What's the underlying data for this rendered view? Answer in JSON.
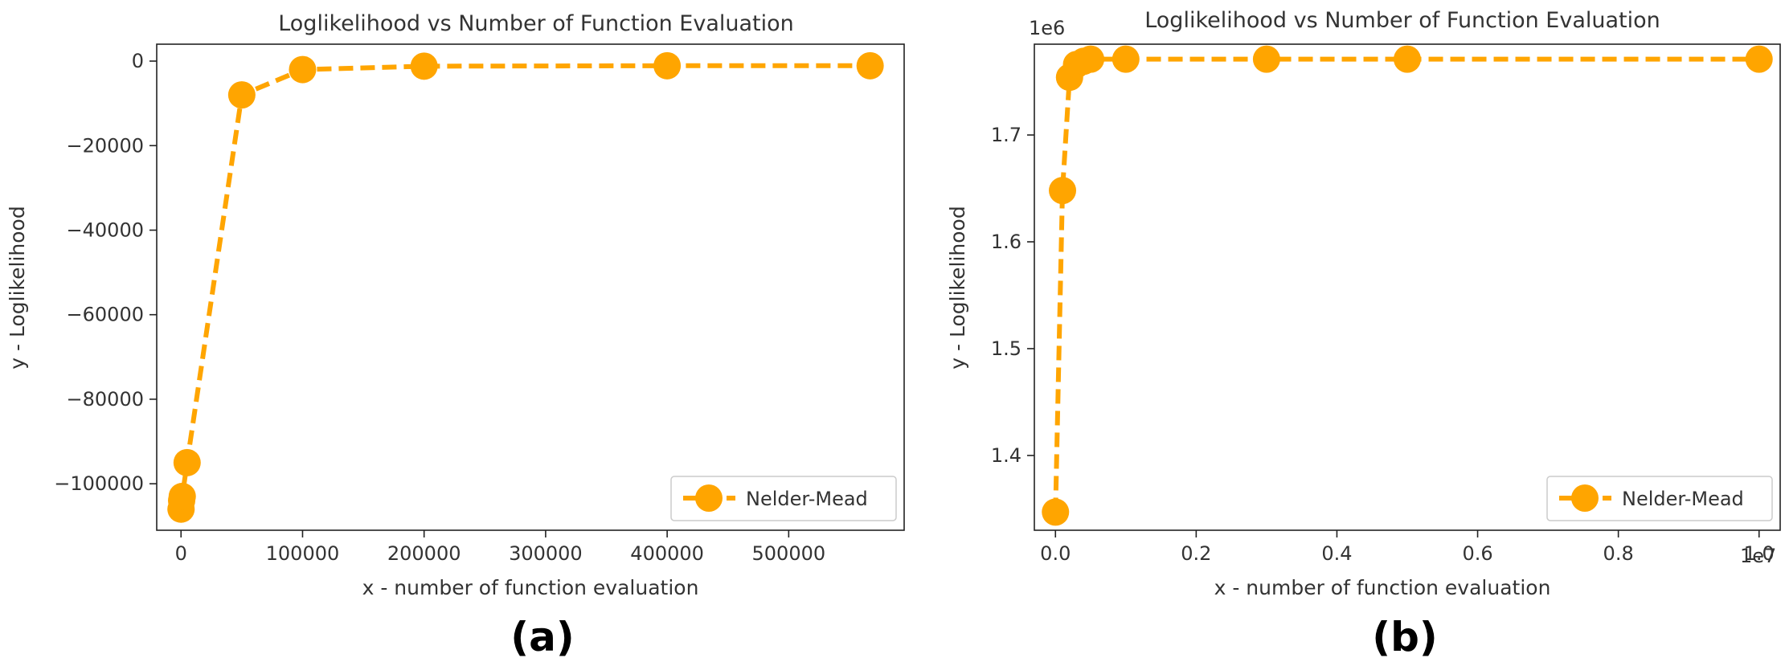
{
  "chart_data": [
    {
      "type": "line",
      "title": "Loglikelihood vs Number of Function Evaluation",
      "xlabel": "x - number of function evaluation",
      "ylabel": "y - Loglikelihood",
      "panel_label": "(a)",
      "xlim": [
        -20000,
        595000
      ],
      "ylim": [
        -111000,
        4000
      ],
      "x_offset_label": "",
      "y_offset_label": "",
      "xticks": [
        {
          "value": 0,
          "label": "0"
        },
        {
          "value": 100000,
          "label": "100000"
        },
        {
          "value": 200000,
          "label": "200000"
        },
        {
          "value": 300000,
          "label": "300000"
        },
        {
          "value": 400000,
          "label": "400000"
        },
        {
          "value": 500000,
          "label": "500000"
        }
      ],
      "yticks": [
        {
          "value": 0,
          "label": "0"
        },
        {
          "value": -20000,
          "label": "−20000"
        },
        {
          "value": -40000,
          "label": "−40000"
        },
        {
          "value": -60000,
          "label": "−60000"
        },
        {
          "value": -80000,
          "label": "−80000"
        },
        {
          "value": -100000,
          "label": "−100000"
        }
      ],
      "legend": {
        "placement": "lower-right",
        "entries": [
          "Nelder-Mead"
        ]
      },
      "grid": false,
      "color": "#FFA500",
      "series": [
        {
          "name": "Nelder-Mead",
          "x": [
            0,
            500,
            1000,
            5000,
            50000,
            100000,
            200000,
            400000,
            567000
          ],
          "y": [
            -106000,
            -104000,
            -103000,
            -95000,
            -8000,
            -2000,
            -1200,
            -1100,
            -1100
          ]
        }
      ]
    },
    {
      "type": "line",
      "title": "Loglikelihood vs Number of Function Evaluation",
      "xlabel": "x - number of function evaluation",
      "ylabel": "y - Loglikelihood",
      "panel_label": "(b)",
      "xlim": [
        -300000,
        10300000
      ],
      "ylim": [
        1.33,
        1.785
      ],
      "x_offset_label": "1e7",
      "y_offset_label": "1e6",
      "xticks": [
        {
          "value": 0,
          "label": "0.0"
        },
        {
          "value": 2000000,
          "label": "0.2"
        },
        {
          "value": 4000000,
          "label": "0.4"
        },
        {
          "value": 6000000,
          "label": "0.6"
        },
        {
          "value": 8000000,
          "label": "0.8"
        },
        {
          "value": 10000000,
          "label": "1.0"
        }
      ],
      "yticks": [
        {
          "value": 1.4,
          "label": "1.4"
        },
        {
          "value": 1.5,
          "label": "1.5"
        },
        {
          "value": 1.6,
          "label": "1.6"
        },
        {
          "value": 1.7,
          "label": "1.7"
        }
      ],
      "legend": {
        "placement": "lower-right",
        "entries": [
          "Nelder-Mead"
        ]
      },
      "grid": false,
      "color": "#FFA500",
      "series": [
        {
          "name": "Nelder-Mead",
          "x": [
            0,
            100000,
            200000,
            300000,
            400000,
            500000,
            1000000,
            3000000,
            5000000,
            10000000
          ],
          "y": [
            1.347,
            1.648,
            1.754,
            1.766,
            1.769,
            1.771,
            1.771,
            1.771,
            1.771,
            1.771
          ]
        }
      ]
    }
  ]
}
